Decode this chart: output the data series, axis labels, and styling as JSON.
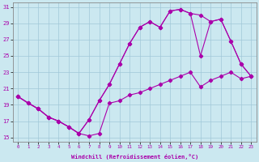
{
  "xlabel": "Windchill (Refroidissement éolien,°C)",
  "bg_color": "#cbe8f0",
  "line_color": "#aa00aa",
  "grid_color": "#a0c8d8",
  "xlim": [
    -0.5,
    23.5
  ],
  "ylim": [
    14.5,
    31.5
  ],
  "xticks": [
    0,
    1,
    2,
    3,
    4,
    5,
    6,
    7,
    8,
    9,
    10,
    11,
    12,
    13,
    14,
    15,
    16,
    17,
    18,
    19,
    20,
    21,
    22,
    23
  ],
  "yticks": [
    15,
    17,
    19,
    21,
    23,
    25,
    27,
    29,
    31
  ],
  "line1_x": [
    0,
    1,
    2,
    3,
    4,
    5,
    6,
    7,
    8,
    9,
    10,
    11,
    12,
    13,
    14,
    15,
    16,
    17,
    18,
    19,
    20,
    21,
    22,
    23
  ],
  "line1_y": [
    20,
    19.2,
    18.5,
    17.5,
    17.0,
    16.3,
    15.5,
    15.2,
    15.5,
    19.2,
    19.5,
    20.2,
    20.5,
    21.0,
    21.5,
    22.0,
    22.5,
    23.0,
    21.2,
    22.0,
    22.5,
    23.0,
    22.2,
    22.5
  ],
  "line2_x": [
    0,
    1,
    2,
    3,
    4,
    5,
    6,
    7,
    8,
    9,
    10,
    11,
    12,
    13,
    14,
    15,
    16,
    17,
    18,
    19,
    20,
    21,
    22,
    23
  ],
  "line2_y": [
    20,
    19.2,
    18.5,
    17.5,
    17.0,
    16.3,
    15.5,
    17.2,
    19.5,
    21.5,
    24.0,
    26.5,
    28.5,
    29.2,
    28.5,
    30.5,
    30.7,
    30.2,
    30.0,
    29.2,
    29.5,
    26.8,
    24.0,
    22.5
  ],
  "line3_x": [
    0,
    2,
    3,
    4,
    5,
    6,
    7,
    8,
    9,
    10,
    11,
    12,
    13,
    14,
    15,
    16,
    17,
    18,
    19,
    20,
    21,
    22,
    23
  ],
  "line3_y": [
    20,
    18.5,
    17.5,
    17.0,
    16.3,
    15.5,
    17.2,
    19.5,
    21.5,
    24.0,
    26.5,
    28.5,
    29.2,
    28.5,
    30.5,
    30.7,
    30.2,
    25.0,
    29.2,
    29.5,
    26.8,
    24.0,
    22.5
  ]
}
